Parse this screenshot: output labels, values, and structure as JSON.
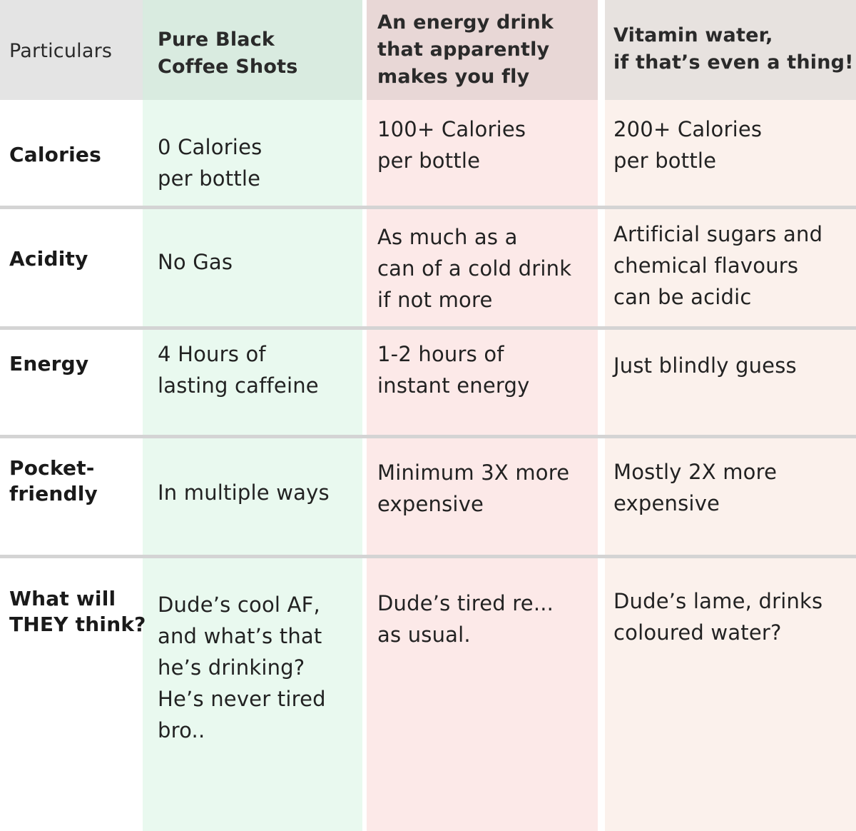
{
  "header": {
    "particulars": "Particulars",
    "col1": "Pure Black\nCoffee Shots",
    "col2": "An energy drink\nthat apparently\nmakes you fly",
    "col3": "Vitamin water,\nif that’s even a thing!"
  },
  "rows": [
    {
      "label": "Calories",
      "c1": "0 Calories\nper bottle",
      "c2": "100+ Calories\nper bottle",
      "c3": "200+ Calories\nper bottle"
    },
    {
      "label": "Acidity",
      "c1": "No Gas",
      "c2": "As much as a\ncan of a cold drink\nif not more",
      "c3": "Artificial sugars and\nchemical flavours\ncan be acidic"
    },
    {
      "label": "Energy",
      "c1": "4 Hours of\nlasting caffeine",
      "c2": "1-2 hours of\ninstant energy",
      "c3": "Just blindly guess"
    },
    {
      "label": "Pocket-\nfriendly",
      "c1": "In multiple ways",
      "c2": "Minimum 3X more\nexpensive",
      "c3": "Mostly 2X more\nexpensive"
    },
    {
      "label": "What will\nTHEY think?",
      "c1": "Dude’s cool AF,\nand what’s that\nhe’s drinking?\nHe’s never tired\nbro..",
      "c2": "Dude’s tired re...\nas usual.",
      "c3": "Dude’s lame, drinks\ncoloured water?"
    }
  ],
  "colors": {
    "coffee_column": "#e9f9ef",
    "energy_drink_column": "#fce9e8",
    "vitamin_water_column": "#fbf1ec",
    "header_gray": "#e4e4e4",
    "divider": "#d4d4d4"
  }
}
